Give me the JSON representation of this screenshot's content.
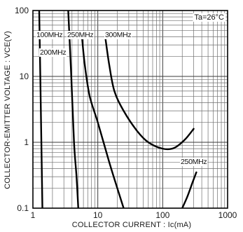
{
  "chart_data": {
    "type": "line",
    "title": "",
    "condition_label": "Ta=26°C",
    "xlabel": "COLLECTOR  CURRENT : Ic(mA)",
    "ylabel": "COLLECTOR-EMITTER VOLTAGE : VCE(V)",
    "x_scale": "log",
    "y_scale": "log",
    "xlim": [
      1,
      1000
    ],
    "ylim": [
      0.1,
      100
    ],
    "x_tick_labels": [
      "1",
      "10",
      "100",
      "1000"
    ],
    "y_tick_labels": [
      "0.1",
      "1",
      "10",
      "100"
    ],
    "grid": true,
    "series": [
      {
        "name": "100MHz",
        "points": [
          [
            1.25,
            100
          ],
          [
            1.3,
            10
          ],
          [
            1.35,
            1
          ],
          [
            1.4,
            0.1
          ]
        ]
      },
      {
        "name": "200MHz",
        "points": [
          [
            3.5,
            100
          ],
          [
            3.9,
            10
          ],
          [
            4.3,
            1
          ],
          [
            4.7,
            0.3
          ],
          [
            5.0,
            0.1
          ]
        ]
      },
      {
        "name": "250MHz",
        "points": [
          [
            5.7,
            40
          ],
          [
            6.3,
            15
          ],
          [
            7.5,
            5
          ],
          [
            10,
            2
          ],
          [
            15,
            0.5
          ],
          [
            20,
            0.2
          ],
          [
            25,
            0.1
          ]
        ]
      },
      {
        "name": "300MHz",
        "points": [
          [
            13,
            40
          ],
          [
            15,
            15
          ],
          [
            18,
            6
          ],
          [
            25,
            3
          ],
          [
            40,
            1.5
          ],
          [
            60,
            1
          ],
          [
            100,
            0.8
          ],
          [
            150,
            0.82
          ],
          [
            220,
            1.1
          ],
          [
            300,
            1.6
          ]
        ]
      },
      {
        "name": "250MHz",
        "points": [
          [
            200,
            0.1
          ],
          [
            240,
            0.15
          ],
          [
            290,
            0.25
          ],
          [
            330,
            0.35
          ]
        ]
      }
    ]
  }
}
